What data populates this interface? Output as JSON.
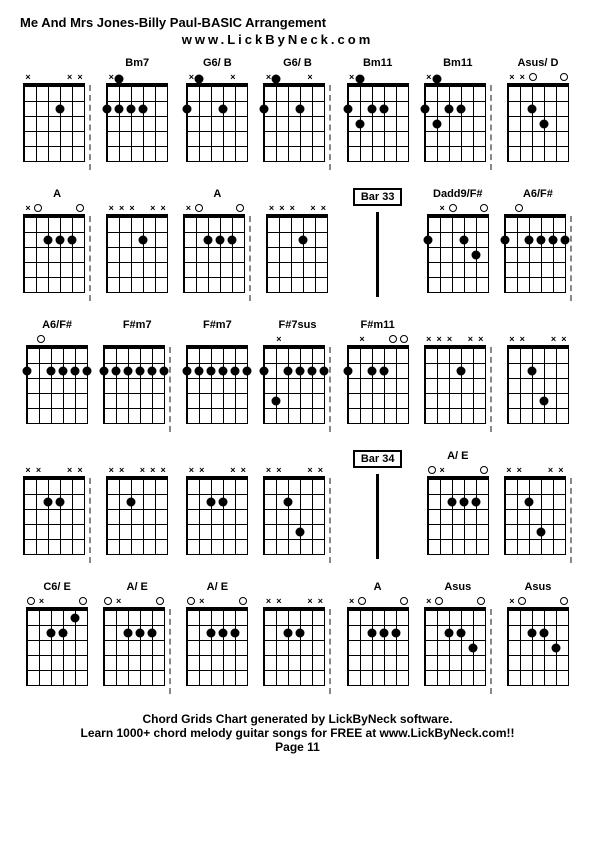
{
  "title": "Me And Mrs Jones-Billy Paul-BASIC Arrangement",
  "subtitle": "www.LickByNeck.com",
  "footer_line1": "Chord Grids Chart generated by LickByNeck software.",
  "footer_line2": "Learn 1000+ chord melody guitar songs for FREE at www.LickByNeck.com!!",
  "footer_page": "Page 11",
  "rows": [
    [
      {
        "label": "",
        "top": [
          "x",
          "",
          "",
          "",
          "x",
          "x"
        ],
        "dots": [
          [
            4,
            2
          ]
        ],
        "sep": "dash"
      },
      {
        "label": "Bm7",
        "top": [
          "x",
          "",
          "",
          "",
          "",
          ""
        ],
        "dots": [
          [
            2,
            0
          ],
          [
            1,
            2
          ],
          [
            2,
            2
          ],
          [
            3,
            2
          ],
          [
            4,
            2
          ]
        ],
        "sep": null
      },
      {
        "label": "G6/ B",
        "top": [
          "x",
          "",
          "",
          "",
          "x",
          ""
        ],
        "dots": [
          [
            2,
            0
          ],
          [
            1,
            2
          ],
          [
            4,
            2
          ]
        ],
        "sep": null
      },
      {
        "label": "G6/ B",
        "top": [
          "x",
          "",
          "",
          "",
          "x",
          ""
        ],
        "dots": [
          [
            2,
            0
          ],
          [
            1,
            2
          ],
          [
            4,
            2
          ]
        ],
        "sep": "dash"
      },
      {
        "label": "Bm11",
        "top": [
          "x",
          "",
          "",
          "",
          "",
          ""
        ],
        "dots": [
          [
            2,
            0
          ],
          [
            1,
            2
          ],
          [
            4,
            2
          ],
          [
            3,
            2
          ],
          [
            2,
            3
          ]
        ],
        "sep": null
      },
      {
        "label": "Bm11",
        "top": [
          "x",
          "",
          "",
          "",
          "",
          ""
        ],
        "dots": [
          [
            2,
            0
          ],
          [
            1,
            2
          ],
          [
            4,
            2
          ],
          [
            3,
            2
          ],
          [
            2,
            3
          ]
        ],
        "sep": "dash"
      },
      {
        "label": "Asus/ D",
        "top": [
          "x",
          "x",
          "o",
          "",
          "",
          "o"
        ],
        "dots": [
          [
            3,
            2
          ],
          [
            4,
            3
          ]
        ],
        "sep": null
      }
    ],
    [
      {
        "label": "A",
        "top": [
          "x",
          "o",
          "",
          "",
          "",
          "o"
        ],
        "dots": [
          [
            3,
            2
          ],
          [
            4,
            2
          ],
          [
            5,
            2
          ]
        ],
        "sep": "dash"
      },
      {
        "label": "",
        "top": [
          "x",
          "x",
          "x",
          "",
          "x",
          "x"
        ],
        "dots": [
          [
            4,
            2
          ]
        ],
        "sep": null
      },
      {
        "label": "A",
        "top": [
          "x",
          "o",
          "",
          "",
          "",
          "o"
        ],
        "dots": [
          [
            3,
            2
          ],
          [
            4,
            2
          ],
          [
            5,
            2
          ]
        ],
        "sep": "dash"
      },
      {
        "label": "",
        "top": [
          "x",
          "x",
          "x",
          "",
          "x",
          "x"
        ],
        "dots": [
          [
            4,
            2
          ]
        ],
        "sep": null
      },
      {
        "label": "Bar 33",
        "type": "bar"
      },
      {
        "label": "Dadd9/F#",
        "top": [
          "",
          "x",
          "o",
          "",
          "",
          "o"
        ],
        "dots": [
          [
            1,
            2
          ],
          [
            4,
            2
          ],
          [
            5,
            3
          ]
        ],
        "sep": null
      },
      {
        "label": "A6/F#",
        "top": [
          "",
          "o",
          "",
          "",
          "",
          ""
        ],
        "dots": [
          [
            1,
            2
          ],
          [
            3,
            2
          ],
          [
            4,
            2
          ],
          [
            5,
            2
          ],
          [
            6,
            2
          ]
        ],
        "sep": "dash"
      }
    ],
    [
      {
        "label": "A6/F#",
        "top": [
          "",
          "o",
          "",
          "",
          "",
          ""
        ],
        "dots": [
          [
            1,
            2
          ],
          [
            3,
            2
          ],
          [
            4,
            2
          ],
          [
            5,
            2
          ],
          [
            6,
            2
          ]
        ],
        "sep": null
      },
      {
        "label": "F#m7",
        "top": [
          "",
          "",
          "",
          "",
          "",
          ""
        ],
        "dots": [
          [
            1,
            2
          ],
          [
            2,
            2
          ],
          [
            3,
            2
          ],
          [
            4,
            2
          ],
          [
            5,
            2
          ],
          [
            6,
            2
          ]
        ],
        "sep": "dash"
      },
      {
        "label": "F#m7",
        "top": [
          "",
          "",
          "",
          "",
          "",
          ""
        ],
        "dots": [
          [
            1,
            2
          ],
          [
            2,
            2
          ],
          [
            3,
            2
          ],
          [
            4,
            2
          ],
          [
            5,
            2
          ],
          [
            6,
            2
          ]
        ],
        "sep": null
      },
      {
        "label": "F#7sus",
        "top": [
          "",
          "x",
          "",
          "",
          "",
          ""
        ],
        "dots": [
          [
            1,
            2
          ],
          [
            3,
            2
          ],
          [
            4,
            2
          ],
          [
            5,
            2
          ],
          [
            6,
            2
          ],
          [
            2,
            4
          ]
        ],
        "sep": "dash"
      },
      {
        "label": "F#m11",
        "top": [
          "",
          "x",
          "",
          "",
          "o",
          "o"
        ],
        "dots": [
          [
            1,
            2
          ],
          [
            3,
            2
          ],
          [
            4,
            2
          ]
        ],
        "sep": null
      },
      {
        "label": "",
        "top": [
          "x",
          "x",
          "x",
          "",
          "x",
          "x"
        ],
        "dots": [
          [
            4,
            2
          ]
        ],
        "sep": "dash"
      },
      {
        "label": "",
        "top": [
          "x",
          "x",
          "",
          "",
          "x",
          "x"
        ],
        "dots": [
          [
            3,
            2
          ],
          [
            4,
            4
          ]
        ],
        "sep": null
      }
    ],
    [
      {
        "label": "",
        "top": [
          "x",
          "x",
          "",
          "",
          "x",
          "x"
        ],
        "dots": [
          [
            3,
            2
          ],
          [
            4,
            2
          ]
        ],
        "sep": "dash"
      },
      {
        "label": "",
        "top": [
          "x",
          "x",
          "",
          "x",
          "x",
          "x"
        ],
        "dots": [
          [
            3,
            2
          ]
        ],
        "sep": null
      },
      {
        "label": "",
        "top": [
          "x",
          "x",
          "",
          "",
          "x",
          "x"
        ],
        "dots": [
          [
            3,
            2
          ],
          [
            4,
            2
          ]
        ],
        "sep": null
      },
      {
        "label": "",
        "top": [
          "x",
          "x",
          "",
          "",
          "x",
          "x"
        ],
        "dots": [
          [
            3,
            2
          ],
          [
            4,
            4
          ]
        ],
        "sep": "dash"
      },
      {
        "label": "Bar 34",
        "type": "bar"
      },
      {
        "label": "A/ E",
        "top": [
          "o",
          "x",
          "",
          "",
          "",
          "o"
        ],
        "dots": [
          [
            3,
            2
          ],
          [
            4,
            2
          ],
          [
            5,
            2
          ]
        ],
        "sep": null
      },
      {
        "label": "",
        "top": [
          "x",
          "x",
          "",
          "",
          "x",
          "x"
        ],
        "dots": [
          [
            3,
            2
          ],
          [
            4,
            4
          ]
        ],
        "sep": "dash"
      }
    ],
    [
      {
        "label": "C6/ E",
        "top": [
          "o",
          "x",
          "",
          "",
          "",
          "o"
        ],
        "dots": [
          [
            3,
            2
          ],
          [
            4,
            2
          ],
          [
            5,
            1
          ]
        ],
        "sep": null
      },
      {
        "label": "A/ E",
        "top": [
          "o",
          "x",
          "",
          "",
          "",
          "o"
        ],
        "dots": [
          [
            3,
            2
          ],
          [
            4,
            2
          ],
          [
            5,
            2
          ]
        ],
        "sep": "dash"
      },
      {
        "label": "A/ E",
        "top": [
          "o",
          "x",
          "",
          "",
          "",
          "o"
        ],
        "dots": [
          [
            3,
            2
          ],
          [
            4,
            2
          ],
          [
            5,
            2
          ]
        ],
        "sep": null
      },
      {
        "label": "",
        "top": [
          "x",
          "x",
          "",
          "",
          "x",
          "x"
        ],
        "dots": [
          [
            3,
            2
          ],
          [
            4,
            2
          ]
        ],
        "sep": "dash"
      },
      {
        "label": "A",
        "top": [
          "x",
          "o",
          "",
          "",
          "",
          "o"
        ],
        "dots": [
          [
            3,
            2
          ],
          [
            4,
            2
          ],
          [
            5,
            2
          ]
        ],
        "sep": null
      },
      {
        "label": "Asus",
        "top": [
          "x",
          "o",
          "",
          "",
          "",
          "o"
        ],
        "dots": [
          [
            3,
            2
          ],
          [
            4,
            2
          ],
          [
            5,
            3
          ]
        ],
        "sep": "dash"
      },
      {
        "label": "Asus",
        "top": [
          "x",
          "o",
          "",
          "",
          "",
          "o"
        ],
        "dots": [
          [
            3,
            2
          ],
          [
            4,
            2
          ],
          [
            5,
            3
          ]
        ],
        "sep": null
      }
    ]
  ]
}
